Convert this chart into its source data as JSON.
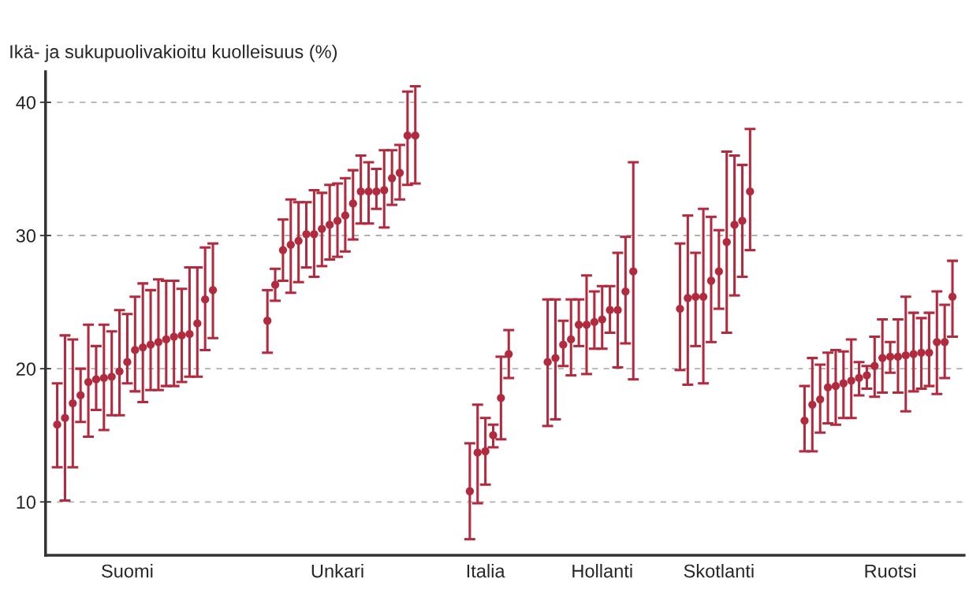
{
  "chart_data": {
    "type": "scatter",
    "ylabel": "Ikä- ja sukupuolivakioitu kuolleisuus (%)",
    "categories": [
      null,
      null,
      null,
      null,
      null,
      null,
      null,
      null,
      null,
      null,
      "Suomi",
      null,
      null,
      null,
      null,
      null,
      null,
      null,
      null,
      null,
      null,
      null,
      null,
      null,
      null,
      null,
      null,
      null,
      null,
      null,
      null,
      null,
      null,
      null,
      null,
      null,
      null,
      "Unkari",
      null,
      null,
      null,
      null,
      null,
      null,
      null,
      null,
      null,
      null,
      null,
      null,
      null,
      null,
      null,
      null,
      null,
      null,
      "Italia",
      null,
      null,
      null,
      null,
      null,
      null,
      null,
      null,
      null,
      null,
      null,
      null,
      null,
      null,
      "Hollanti",
      null,
      null,
      null,
      null,
      null,
      null,
      null,
      null,
      null,
      null,
      null,
      null,
      null,
      null,
      "Skotlanti",
      null,
      null,
      null,
      null,
      null,
      null,
      null,
      null,
      null,
      null,
      null,
      null,
      null,
      null,
      null,
      null,
      null,
      null,
      null,
      null,
      null,
      "Ruotsi",
      null,
      null,
      null,
      null,
      null,
      null,
      null,
      null,
      null
    ],
    "series": [
      {
        "color": "#b22a3e",
        "values": [
          null,
          15.8,
          16.3,
          17.4,
          18.0,
          19.0,
          19.2,
          19.3,
          19.4,
          19.8,
          20.5,
          21.4,
          21.6,
          21.8,
          22.0,
          22.2,
          22.4,
          22.5,
          22.6,
          23.4,
          25.2,
          25.9,
          null,
          null,
          null,
          null,
          null,
          null,
          23.6,
          26.3,
          28.9,
          29.3,
          29.6,
          30.1,
          30.1,
          30.5,
          30.8,
          31.1,
          31.5,
          32.4,
          33.3,
          33.3,
          33.3,
          33.4,
          34.3,
          34.7,
          37.5,
          37.5,
          null,
          null,
          null,
          null,
          null,
          null,
          10.8,
          13.7,
          13.8,
          15.0,
          17.8,
          21.1,
          null,
          null,
          null,
          null,
          20.5,
          20.8,
          21.8,
          22.2,
          23.3,
          23.3,
          23.5,
          23.7,
          24.4,
          24.4,
          25.8,
          27.3,
          null,
          null,
          null,
          null,
          null,
          24.5,
          25.3,
          25.4,
          25.4,
          26.6,
          27.3,
          29.5,
          30.8,
          31.1,
          33.3,
          null,
          null,
          null,
          null,
          null,
          null,
          16.1,
          17.3,
          17.7,
          18.6,
          18.7,
          18.9,
          19.1,
          19.3,
          19.5,
          20.2,
          20.8,
          20.9,
          20.9,
          21.0,
          21.1,
          21.2,
          21.2,
          22.0,
          22.0,
          25.4,
          null
        ],
        "errors": [
          null,
          [
            12.6,
            18.9
          ],
          [
            10.1,
            22.5
          ],
          [
            12.6,
            22.2
          ],
          [
            16.0,
            20.0
          ],
          [
            14.9,
            23.3
          ],
          [
            16.9,
            21.7
          ],
          [
            15.4,
            23.3
          ],
          [
            16.5,
            22.8
          ],
          [
            16.5,
            24.4
          ],
          [
            18.9,
            24.1
          ],
          [
            18.3,
            25.4
          ],
          [
            17.5,
            26.4
          ],
          [
            18.4,
            25.9
          ],
          [
            18.4,
            26.7
          ],
          [
            18.7,
            26.6
          ],
          [
            18.7,
            26.6
          ],
          [
            19.0,
            26.0
          ],
          [
            19.4,
            27.6
          ],
          [
            19.4,
            27.6
          ],
          [
            21.4,
            29.1
          ],
          [
            22.3,
            29.4
          ],
          null,
          null,
          null,
          null,
          null,
          null,
          [
            21.2,
            25.9
          ],
          [
            25.1,
            27.5
          ],
          [
            26.6,
            31.2
          ],
          [
            25.7,
            32.7
          ],
          [
            26.5,
            32.5
          ],
          [
            27.6,
            32.5
          ],
          [
            26.9,
            33.4
          ],
          [
            27.7,
            33.2
          ],
          [
            28.2,
            33.8
          ],
          [
            28.4,
            33.9
          ],
          [
            28.8,
            34.3
          ],
          [
            29.7,
            34.9
          ],
          [
            30.9,
            36.0
          ],
          [
            30.9,
            35.5
          ],
          [
            32.0,
            35.0
          ],
          [
            30.6,
            36.4
          ],
          [
            32.3,
            36.4
          ],
          [
            32.7,
            36.8
          ],
          [
            33.8,
            40.8
          ],
          [
            33.9,
            41.2
          ],
          null,
          null,
          null,
          null,
          null,
          null,
          [
            7.2,
            14.4
          ],
          [
            9.9,
            17.3
          ],
          [
            11.3,
            16.3
          ],
          [
            14.1,
            15.8
          ],
          [
            14.7,
            20.9
          ],
          [
            19.3,
            22.9
          ],
          null,
          null,
          null,
          null,
          [
            15.7,
            25.2
          ],
          [
            16.2,
            25.2
          ],
          [
            20.2,
            23.6
          ],
          [
            19.5,
            25.2
          ],
          [
            21.7,
            25.2
          ],
          [
            19.6,
            27.0
          ],
          [
            21.5,
            25.8
          ],
          [
            21.5,
            26.2
          ],
          [
            22.7,
            26.2
          ],
          [
            20.1,
            28.7
          ],
          [
            21.9,
            29.9
          ],
          [
            19.2,
            35.5
          ],
          null,
          null,
          null,
          null,
          null,
          [
            19.9,
            29.4
          ],
          [
            18.8,
            31.5
          ],
          [
            21.7,
            28.7
          ],
          [
            18.9,
            32.0
          ],
          [
            22.0,
            31.4
          ],
          [
            24.5,
            30.4
          ],
          [
            22.7,
            36.3
          ],
          [
            25.5,
            36.0
          ],
          [
            26.9,
            35.3
          ],
          [
            28.9,
            38.0
          ],
          null,
          null,
          null,
          null,
          null,
          null,
          [
            13.8,
            18.7
          ],
          [
            13.8,
            20.8
          ],
          [
            15.2,
            20.3
          ],
          [
            15.9,
            21.2
          ],
          [
            15.8,
            21.4
          ],
          [
            16.3,
            21.3
          ],
          [
            16.3,
            22.2
          ],
          [
            18.0,
            20.5
          ],
          [
            18.5,
            20.2
          ],
          [
            17.9,
            22.4
          ],
          [
            18.2,
            23.7
          ],
          [
            19.7,
            22.0
          ],
          [
            18.2,
            23.7
          ],
          [
            16.8,
            25.4
          ],
          [
            18.3,
            24.2
          ],
          [
            18.5,
            23.8
          ],
          [
            18.7,
            24.2
          ],
          [
            18.1,
            25.8
          ],
          [
            19.3,
            24.8
          ],
          [
            22.4,
            28.1
          ],
          null
        ]
      }
    ],
    "ylim": [
      6,
      42.3
    ],
    "yticks": [
      10,
      20,
      30,
      40
    ],
    "grid": "y",
    "marker": "circle",
    "legend": false
  }
}
